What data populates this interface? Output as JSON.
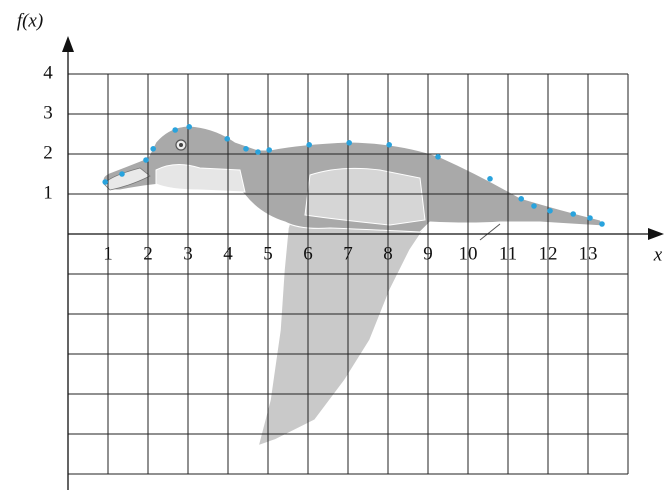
{
  "chart_data": {
    "type": "scatter",
    "x_label": "x",
    "y_label": "f(x)",
    "x": [
      0.93,
      1.35,
      1.95,
      2.13,
      2.68,
      3.03,
      3.98,
      4.45,
      4.75,
      5.03,
      6.03,
      7.03,
      8.03,
      9.25,
      10.55,
      11.33,
      11.65,
      12.05,
      12.63,
      13.05,
      13.35
    ],
    "values": [
      1.3,
      1.5,
      1.85,
      2.13,
      2.6,
      2.68,
      2.38,
      2.13,
      2.05,
      2.1,
      2.23,
      2.28,
      2.23,
      1.93,
      1.38,
      0.88,
      0.7,
      0.58,
      0.5,
      0.4,
      0.25
    ],
    "color": "#29a3dd",
    "xlim": [
      0,
      14
    ],
    "ylim": [
      -6,
      4
    ],
    "xticks": [
      1,
      2,
      3,
      4,
      5,
      6,
      7,
      8,
      9,
      10,
      11,
      12,
      13
    ],
    "yticks": [
      1,
      2,
      3,
      4
    ],
    "grid": true
  }
}
